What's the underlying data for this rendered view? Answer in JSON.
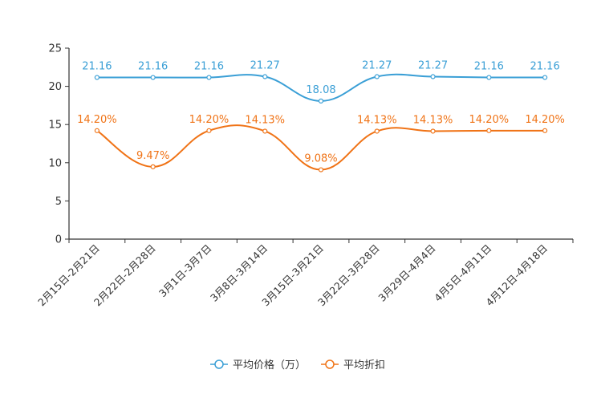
{
  "chart_data": {
    "type": "line",
    "title": "",
    "xlabel": "",
    "ylabel": "",
    "ylim": [
      0,
      25
    ],
    "yticks": [
      0,
      5,
      10,
      15,
      20,
      25
    ],
    "grid": false,
    "legend_position": "bottom-center",
    "categories": [
      "2月15日-2月21日",
      "2月22日-2月28日",
      "3月1日-3月7日",
      "3月8日-3月14日",
      "3月15日-3月21日",
      "3月22日-3月28日",
      "3月29日-4月4日",
      "4月5日-4月11日",
      "4月12日-4月18日"
    ],
    "series": [
      {
        "name": "平均价格（万）",
        "color": "#3a9fd6",
        "values": [
          21.16,
          21.16,
          21.16,
          21.27,
          18.08,
          21.27,
          21.27,
          21.16,
          21.16
        ],
        "labels": [
          "21.16",
          "21.16",
          "21.16",
          "21.27",
          "18.08",
          "21.27",
          "21.27",
          "21.16",
          "21.16"
        ]
      },
      {
        "name": "平均折扣",
        "color": "#f07316",
        "values": [
          14.2,
          9.47,
          14.2,
          14.13,
          9.08,
          14.13,
          14.13,
          14.2,
          14.2
        ],
        "labels": [
          "14.20%",
          "9.47%",
          "14.20%",
          "14.13%",
          "9.08%",
          "14.13%",
          "14.13%",
          "14.20%",
          "14.20%"
        ]
      }
    ]
  }
}
